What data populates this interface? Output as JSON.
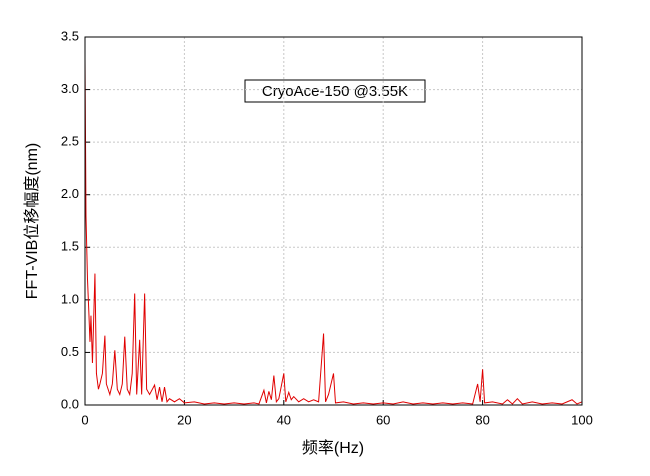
{
  "chart_data": {
    "type": "line",
    "x_label": "频率(Hz)",
    "y_label": "FFT-VIB位移幅度(nm)",
    "annotation": "CryoAce-150 @3.55K",
    "xlim": [
      0,
      100
    ],
    "xticks": [
      0,
      20,
      40,
      60,
      80,
      100
    ],
    "ylim": [
      0,
      3.5
    ],
    "yticks": [
      {
        "value": 0,
        "label": "0.0"
      },
      0.5,
      {
        "value": 1,
        "label": "1.0"
      },
      1.5,
      {
        "value": 2,
        "label": "2.0"
      },
      2.5,
      {
        "value": 3,
        "label": "3.0"
      },
      3.5
    ],
    "grid": true,
    "series": [
      {
        "color": "#e00000",
        "x": [
          0,
          0.2,
          0.5,
          0.8,
          1.0,
          1.2,
          1.5,
          2,
          2.3,
          2.7,
          3,
          3.5,
          4,
          4.3,
          5,
          5.5,
          6,
          6.5,
          7,
          7.5,
          8,
          8.5,
          9,
          9.5,
          10,
          10.4,
          11,
          11.4,
          12,
          12.4,
          13,
          14,
          14.5,
          15,
          15.5,
          16,
          16.5,
          17,
          18,
          19,
          20,
          22,
          24,
          26,
          28,
          30,
          32,
          34,
          35,
          36,
          36.5,
          37,
          37.5,
          38,
          38.5,
          39,
          40,
          40.4,
          41,
          41.5,
          42,
          43,
          44,
          45,
          46,
          47,
          48,
          48.4,
          49,
          50,
          50.4,
          52,
          54,
          56,
          58,
          60,
          62,
          64,
          66,
          68,
          70,
          72,
          74,
          76,
          78,
          79,
          79.5,
          80,
          80.4,
          82,
          84,
          85,
          86,
          87,
          88,
          90,
          92,
          94,
          96,
          98,
          99,
          100
        ],
        "values": [
          3.3,
          1.8,
          1.2,
          0.85,
          0.6,
          0.85,
          0.4,
          1.25,
          0.3,
          0.15,
          0.2,
          0.3,
          0.66,
          0.2,
          0.1,
          0.2,
          0.52,
          0.15,
          0.1,
          0.2,
          0.65,
          0.15,
          0.1,
          0.3,
          1.06,
          0.1,
          0.62,
          0.1,
          1.06,
          0.15,
          0.1,
          0.19,
          0.05,
          0.17,
          0.03,
          0.17,
          0.03,
          0.06,
          0.03,
          0.06,
          0.02,
          0.03,
          0.01,
          0.02,
          0.01,
          0.02,
          0.01,
          0.02,
          0.01,
          0.14,
          0.02,
          0.13,
          0.05,
          0.28,
          0.03,
          0.06,
          0.3,
          0.03,
          0.12,
          0.05,
          0.08,
          0.03,
          0.06,
          0.03,
          0.05,
          0.03,
          0.68,
          0.03,
          0.1,
          0.3,
          0.02,
          0.03,
          0.01,
          0.02,
          0.01,
          0.02,
          0.01,
          0.03,
          0.01,
          0.02,
          0.01,
          0.02,
          0.01,
          0.02,
          0.01,
          0.2,
          0.03,
          0.34,
          0.02,
          0.03,
          0.01,
          0.05,
          0.01,
          0.06,
          0.01,
          0.03,
          0.01,
          0.02,
          0.01,
          0.05,
          0.01,
          0.03
        ]
      }
    ]
  }
}
